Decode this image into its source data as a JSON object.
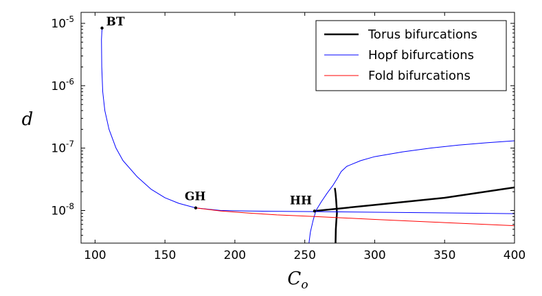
{
  "chart_data": {
    "type": "line",
    "title": "",
    "xlabel": "C",
    "xlabel_subscript": "o",
    "ylabel": "d",
    "xlim": [
      90,
      400
    ],
    "ylim": [
      3e-09,
      1.5e-05
    ],
    "yscale": "log",
    "grid": false,
    "legend_position": "top-right",
    "x_ticks": [
      {
        "value": 100,
        "label": "100"
      },
      {
        "value": 150,
        "label": "150"
      },
      {
        "value": 200,
        "label": "200"
      },
      {
        "value": 250,
        "label": "250"
      },
      {
        "value": 300,
        "label": "300"
      },
      {
        "value": 350,
        "label": "350"
      },
      {
        "value": 400,
        "label": "400"
      }
    ],
    "y_ticks": [
      {
        "value": 1e-08,
        "base": "10",
        "exp": "-8"
      },
      {
        "value": 1e-07,
        "base": "10",
        "exp": "-7"
      },
      {
        "value": 1e-06,
        "base": "10",
        "exp": "-6"
      },
      {
        "value": 1e-05,
        "base": "10",
        "exp": "-5"
      }
    ],
    "series": [
      {
        "name": "Torus bifurcations",
        "color": "#000000",
        "branches": [
          [
            [
              257,
              9.8e-09
            ],
            [
              300,
              1.23e-08
            ],
            [
              350,
              1.6e-08
            ],
            [
              400,
              2.35e-08
            ]
          ],
          [
            [
              271.5,
              2.3e-08
            ],
            [
              272.0,
              1.9e-08
            ],
            [
              272.4,
              1.5e-08
            ],
            [
              272.8,
              1.1e-08
            ],
            [
              273.0,
              9e-09
            ],
            [
              272.6,
              7e-09
            ],
            [
              272.2,
              5e-09
            ],
            [
              272.0,
              3e-09
            ]
          ]
        ]
      },
      {
        "name": "Hopf bifurcations",
        "color": "#0000ff",
        "branches": [
          [
            [
              105,
              8.4e-06
            ],
            [
              104.6,
              5.5e-06
            ],
            [
              104.8,
              2e-06
            ],
            [
              105.5,
              8e-07
            ],
            [
              107,
              4e-07
            ],
            [
              110,
              2e-07
            ],
            [
              115,
              1e-07
            ],
            [
              120,
              6.3e-08
            ],
            [
              130,
              3.5e-08
            ],
            [
              140,
              2.2e-08
            ],
            [
              150,
              1.6e-08
            ],
            [
              160,
              1.3e-08
            ],
            [
              172,
              1.1e-08
            ],
            [
              190,
              1e-08
            ],
            [
              210,
              9.8e-09
            ],
            [
              240,
              9.65e-09
            ],
            [
              257,
              9.6e-09
            ],
            [
              300,
              9.4e-09
            ],
            [
              350,
              9.15e-09
            ],
            [
              400,
              8.9e-09
            ]
          ],
          [
            [
              253,
              3e-09
            ],
            [
              254,
              4.5e-09
            ],
            [
              256,
              7e-09
            ],
            [
              258,
              1e-08
            ],
            [
              262,
              1.4e-08
            ],
            [
              266,
              1.9e-08
            ],
            [
              270,
              2.5e-08
            ],
            [
              273,
              3.2e-08
            ],
            [
              276,
              4.2e-08
            ],
            [
              280,
              5.1e-08
            ],
            [
              290,
              6.3e-08
            ],
            [
              300,
              7.3e-08
            ],
            [
              320,
              8.7e-08
            ],
            [
              340,
              1e-07
            ],
            [
              360,
              1.12e-07
            ],
            [
              380,
              1.22e-07
            ],
            [
              400,
              1.31e-07
            ]
          ]
        ]
      },
      {
        "name": "Fold bifurcations",
        "color": "#ff0000",
        "branches": [
          [
            [
              172,
              1.1e-08
            ],
            [
              190,
              9.8e-09
            ],
            [
              210,
              9.1e-09
            ],
            [
              230,
              8.5e-09
            ],
            [
              257,
              8e-09
            ],
            [
              300,
              7.2e-09
            ],
            [
              350,
              6.4e-09
            ],
            [
              400,
              5.7e-09
            ]
          ]
        ]
      }
    ],
    "annotations": [
      {
        "label": "BT",
        "x": 105,
        "y": 8.4e-06
      },
      {
        "label": "GH",
        "x": 172,
        "y": 1.1e-08
      },
      {
        "label": "HH",
        "x": 257,
        "y": 9.8e-09
      }
    ]
  }
}
